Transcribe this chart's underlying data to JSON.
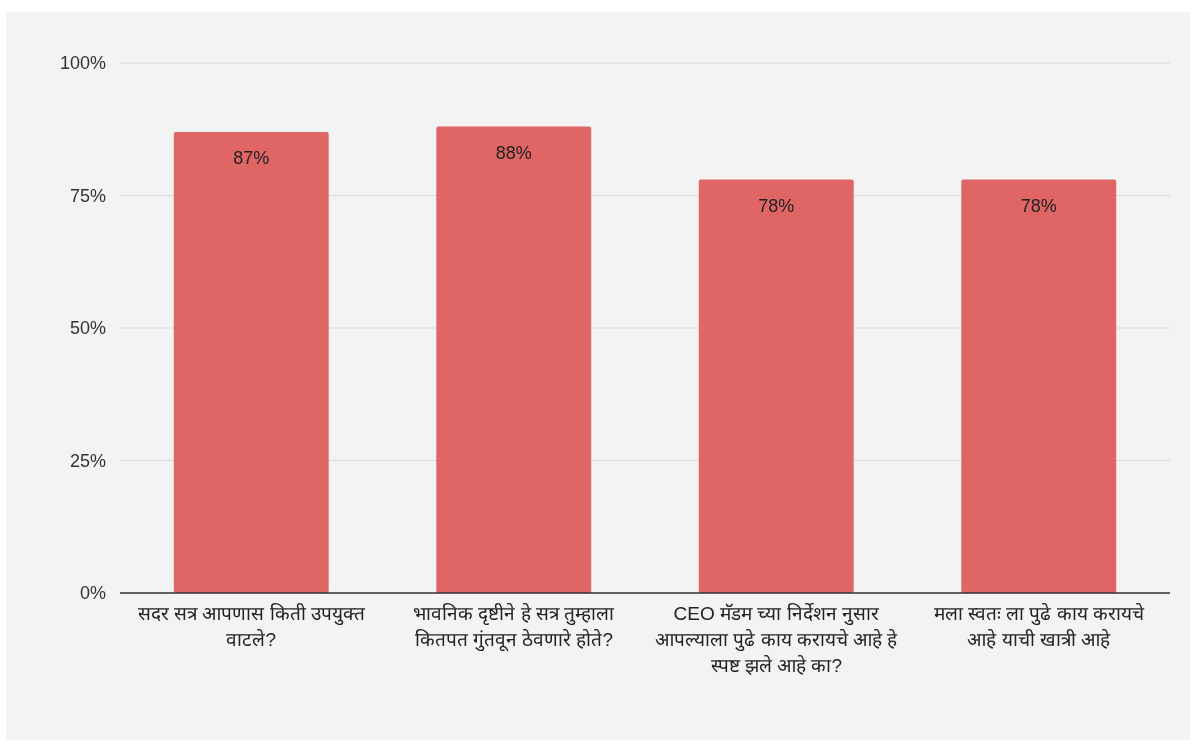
{
  "chart_data": {
    "type": "bar",
    "categories": [
      "सदर सत्र आपणास किती उपयुक्त वाटले?",
      "भावनिक  दृष्टीने  हे सत्र तुम्हाला कितपत गुंतवून ठेवणारे होते?",
      "CEO मॅडम च्या निर्देशन नुसार आपल्याला पुढे काय करायचे आहे हे स्पष्ट झले आहे का?",
      "मला स्वतः ला पुढे काय करायचे आहे याची खात्री आहे"
    ],
    "values": [
      87,
      88,
      78,
      78
    ],
    "value_labels": [
      "87%",
      "88%",
      "78%",
      "78%"
    ],
    "color": "#e06666",
    "ylim": [
      0,
      100
    ],
    "yticks": [
      {
        "value": 0,
        "label": "0%"
      },
      {
        "value": 25,
        "label": "25%"
      },
      {
        "value": 50,
        "label": "50%"
      },
      {
        "value": 75,
        "label": "75%"
      },
      {
        "value": 100,
        "label": "100%"
      }
    ],
    "grid": "y"
  }
}
